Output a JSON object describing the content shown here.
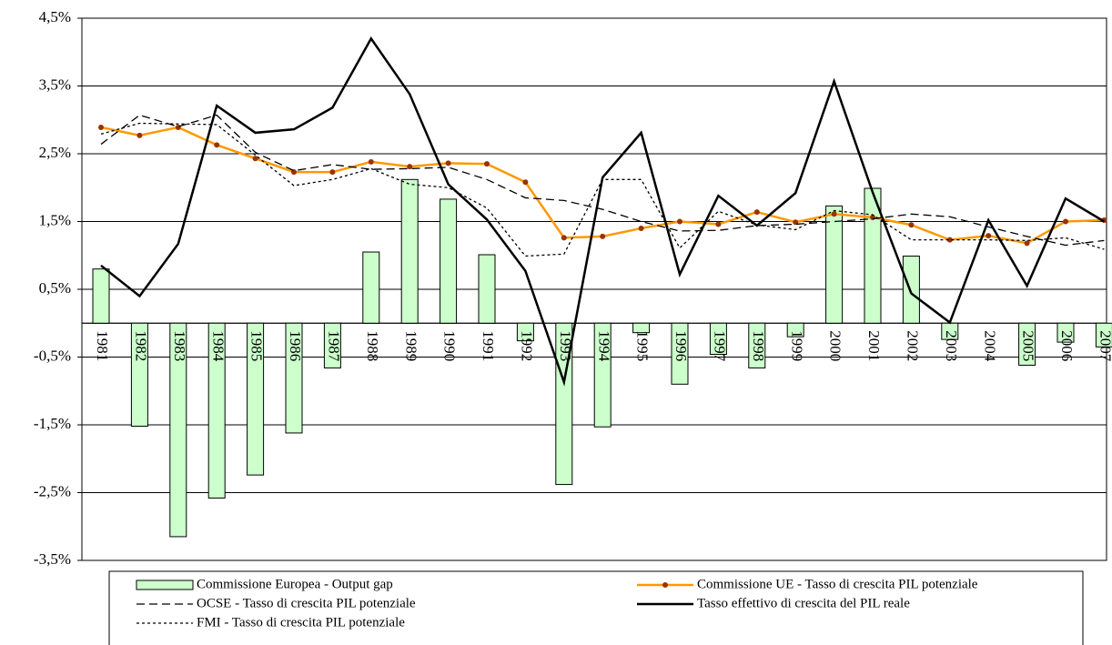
{
  "chart_data": {
    "type": "bar-line",
    "categories": [
      "1981",
      "1982",
      "1983",
      "1984",
      "1985",
      "1986",
      "1987",
      "1988",
      "1989",
      "1990",
      "1991",
      "1992",
      "1993",
      "1994",
      "1995",
      "1996",
      "1997",
      "1998",
      "1999",
      "2000",
      "2001",
      "2002",
      "2003",
      "2004",
      "2005",
      "2006",
      "2007"
    ],
    "ylim": [
      -3.5,
      4.5
    ],
    "yticks": [
      {
        "value": -3.5,
        "label": "-3,5%"
      },
      {
        "value": -2.5,
        "label": "-2,5%"
      },
      {
        "value": -1.5,
        "label": "-1,5%"
      },
      {
        "value": -0.5,
        "label": "-0,5%"
      },
      {
        "value": 0.5,
        "label": "0,5%"
      },
      {
        "value": 1.5,
        "label": "1,5%"
      },
      {
        "value": 2.5,
        "label": "2,5%"
      },
      {
        "value": 3.5,
        "label": "3,5%"
      },
      {
        "value": 4.5,
        "label": "4,5%"
      }
    ],
    "grid": true,
    "legend": "bottom",
    "series": [
      {
        "name": "Commissione Europea - Output gap",
        "type": "bar",
        "color": "#ccffcc",
        "values": [
          0.8,
          -1.52,
          -3.15,
          -2.58,
          -2.24,
          -1.62,
          -0.66,
          1.05,
          2.12,
          1.83,
          1.01,
          -0.26,
          -2.38,
          -1.53,
          -0.14,
          -0.9,
          -0.46,
          -0.66,
          -0.2,
          1.73,
          1.99,
          0.99,
          -0.24,
          0,
          -0.62,
          -0.28,
          -0.35
        ]
      },
      {
        "name": "Commissione UE - Tasso di crescita PIL potenziale",
        "type": "line",
        "color": "#ff9900",
        "marker_color": "#993300",
        "dash": "solid",
        "values": [
          2.89,
          2.77,
          2.89,
          2.63,
          2.43,
          2.23,
          2.23,
          2.38,
          2.31,
          2.36,
          2.35,
          2.08,
          1.26,
          1.28,
          1.4,
          1.5,
          1.46,
          1.64,
          1.49,
          1.61,
          1.56,
          1.45,
          1.23,
          1.29,
          1.18,
          1.5,
          1.52
        ]
      },
      {
        "name": "OCSE - Tasso di crescita PIL potenziale",
        "type": "line",
        "color": "#000000",
        "dash": "dashed",
        "values": [
          2.64,
          3.07,
          2.9,
          3.07,
          2.52,
          2.25,
          2.34,
          2.27,
          2.28,
          2.3,
          2.12,
          1.85,
          1.81,
          1.68,
          1.5,
          1.36,
          1.37,
          1.44,
          1.46,
          1.5,
          1.54,
          1.61,
          1.57,
          1.42,
          1.28,
          1.15,
          1.22
        ]
      },
      {
        "name": "Tasso effettivo di crescita del PIL reale",
        "type": "line",
        "color": "#000000",
        "dash": "solid",
        "width": 2.5,
        "values": [
          0.85,
          0.4,
          1.17,
          3.21,
          2.81,
          2.86,
          3.18,
          4.2,
          3.38,
          2.05,
          1.53,
          0.77,
          -0.87,
          2.15,
          2.81,
          0.72,
          1.88,
          1.44,
          1.92,
          3.57,
          1.93,
          0.44,
          0.01,
          1.52,
          0.55,
          1.84,
          1.5
        ]
      },
      {
        "name": "FMI - Tasso di crescita PIL potenziale",
        "type": "line",
        "color": "#000000",
        "dash": "dotted",
        "values": [
          2.79,
          2.95,
          2.94,
          2.93,
          2.48,
          2.03,
          2.12,
          2.28,
          2.05,
          2.0,
          1.7,
          0.99,
          1.02,
          2.12,
          2.12,
          1.11,
          1.65,
          1.45,
          1.38,
          1.66,
          1.6,
          1.23,
          1.23,
          1.23,
          1.22,
          1.26,
          1.09
        ]
      }
    ]
  }
}
